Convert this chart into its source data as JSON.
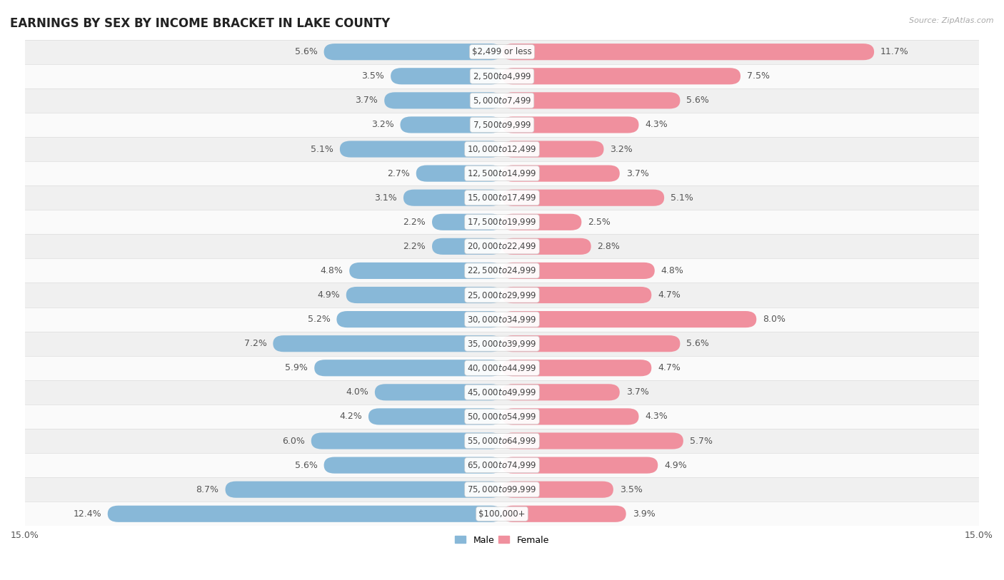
{
  "title": "EARNINGS BY SEX BY INCOME BRACKET IN LAKE COUNTY",
  "source": "Source: ZipAtlas.com",
  "categories": [
    "$2,499 or less",
    "$2,500 to $4,999",
    "$5,000 to $7,499",
    "$7,500 to $9,999",
    "$10,000 to $12,499",
    "$12,500 to $14,999",
    "$15,000 to $17,499",
    "$17,500 to $19,999",
    "$20,000 to $22,499",
    "$22,500 to $24,999",
    "$25,000 to $29,999",
    "$30,000 to $34,999",
    "$35,000 to $39,999",
    "$40,000 to $44,999",
    "$45,000 to $49,999",
    "$50,000 to $54,999",
    "$55,000 to $64,999",
    "$65,000 to $74,999",
    "$75,000 to $99,999",
    "$100,000+"
  ],
  "male_values": [
    5.6,
    3.5,
    3.7,
    3.2,
    5.1,
    2.7,
    3.1,
    2.2,
    2.2,
    4.8,
    4.9,
    5.2,
    7.2,
    5.9,
    4.0,
    4.2,
    6.0,
    5.6,
    8.7,
    12.4
  ],
  "female_values": [
    11.7,
    7.5,
    5.6,
    4.3,
    3.2,
    3.7,
    5.1,
    2.5,
    2.8,
    4.8,
    4.7,
    8.0,
    5.6,
    4.7,
    3.7,
    4.3,
    5.7,
    4.9,
    3.5,
    3.9
  ],
  "male_color": "#88b8d8",
  "female_color": "#f0909e",
  "background_color": "#ffffff",
  "row_color_even": "#f0f0f0",
  "row_color_odd": "#fafafa",
  "xlim": 15.0,
  "legend_male": "Male",
  "legend_female": "Female",
  "title_fontsize": 12,
  "label_fontsize": 9,
  "category_fontsize": 8.5,
  "tick_fontsize": 9
}
